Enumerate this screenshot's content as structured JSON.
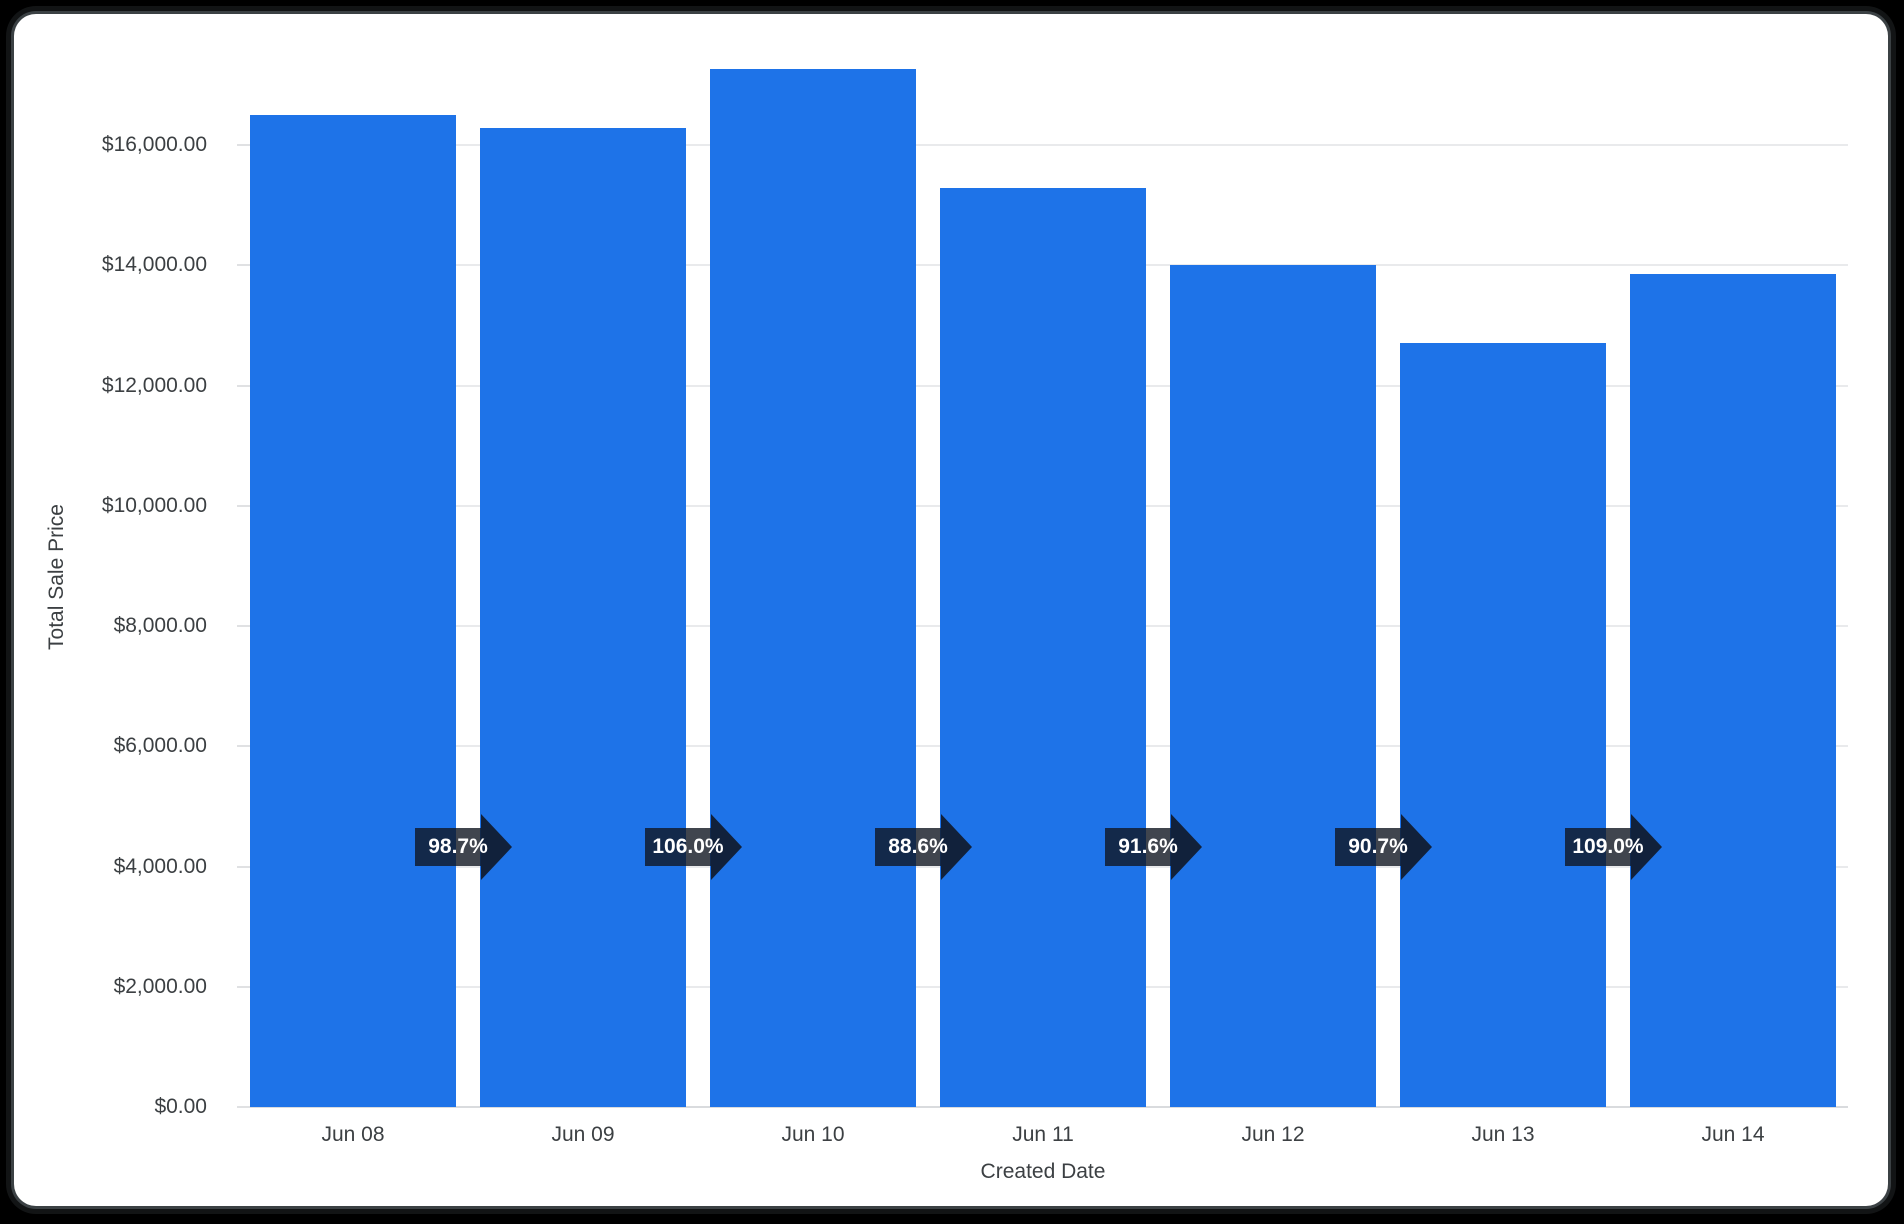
{
  "chart_data": {
    "type": "bar",
    "title": "",
    "xlabel": "Created Date",
    "ylabel": "Total Sale Price",
    "categories": [
      "Jun 08",
      "Jun 09",
      "Jun 10",
      "Jun 11",
      "Jun 12",
      "Jun 13",
      "Jun 14"
    ],
    "series": [
      {
        "name": "Total Sale Price",
        "values": [
          16500,
          16290,
          17260,
          15290,
          14010,
          12710,
          13850
        ]
      }
    ],
    "change_labels": [
      "98.7%",
      "106.0%",
      "88.6%",
      "91.6%",
      "90.7%",
      "109.0%"
    ],
    "y_ticks": [
      {
        "label": "$0.00",
        "value": 0
      },
      {
        "label": "$2,000.00",
        "value": 2000
      },
      {
        "label": "$4,000.00",
        "value": 4000
      },
      {
        "label": "$6,000.00",
        "value": 6000
      },
      {
        "label": "$8,000.00",
        "value": 8000
      },
      {
        "label": "$10,000.00",
        "value": 10000
      },
      {
        "label": "$12,000.00",
        "value": 12000
      },
      {
        "label": "$14,000.00",
        "value": 14000
      },
      {
        "label": "$16,000.00",
        "value": 16000
      }
    ],
    "ylim": [
      0,
      17600
    ],
    "grid": "horizontal",
    "legend": "none",
    "colors": {
      "bar": "#1e73e8",
      "grid": "#e9eaec",
      "axis_line": "#d9dbde",
      "axis_text": "#3c4043",
      "badge_fill": "#101622",
      "badge_text": "#ffffff",
      "card_background": "#ffffff",
      "frame": "#000000"
    }
  }
}
